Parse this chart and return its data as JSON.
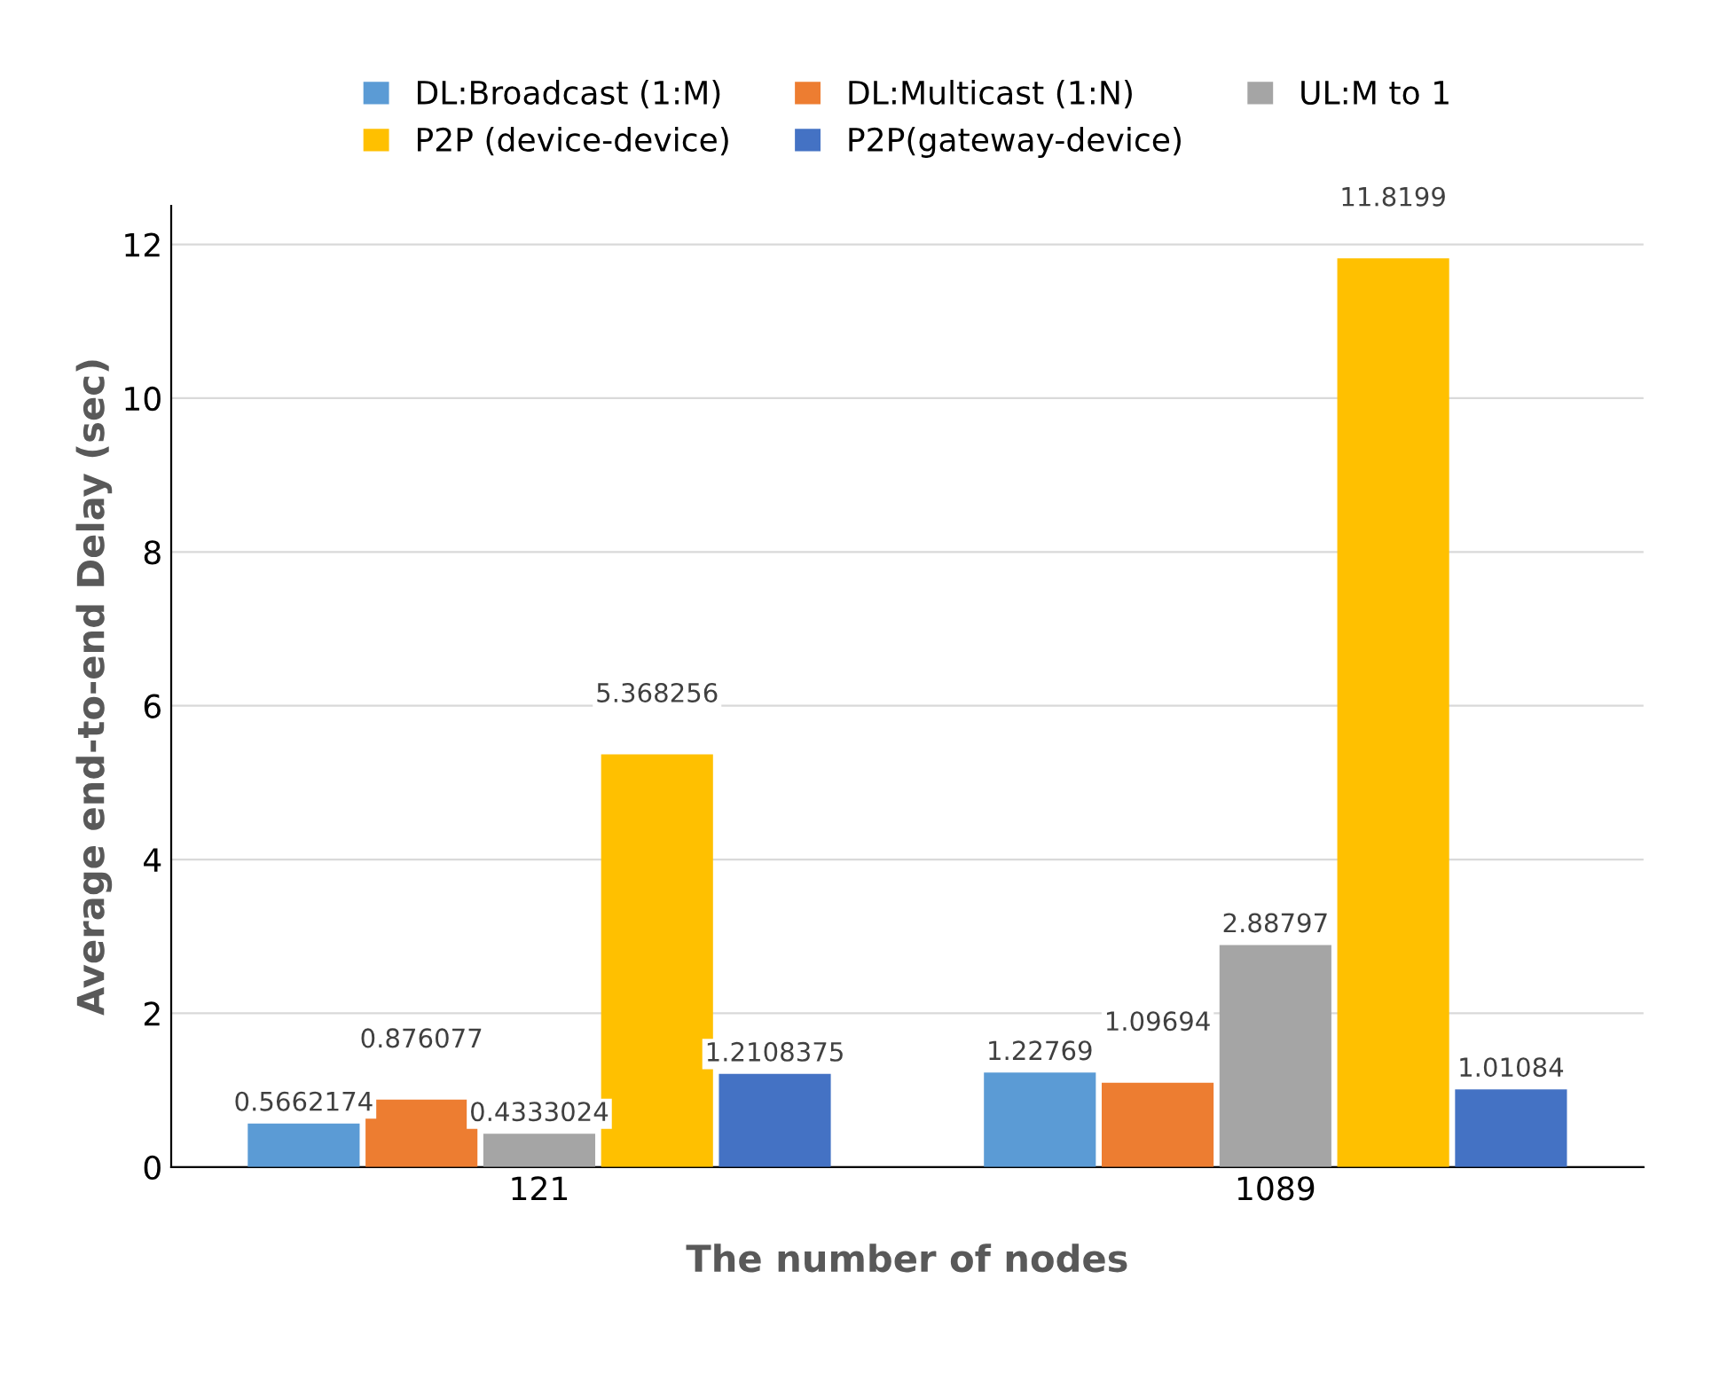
{
  "chart_data": {
    "type": "bar",
    "xlabel": "The number of nodes",
    "ylabel": "Average end-to-end Delay (sec)",
    "categories": [
      "121",
      "1089"
    ],
    "series": [
      {
        "name": "DL:Broadcast (1:M)",
        "color": "#5b9bd5",
        "values": [
          0.5662174,
          1.22769
        ]
      },
      {
        "name": "DL:Multicast (1:N)",
        "color": "#ed7d31",
        "values": [
          0.876077,
          1.09694
        ]
      },
      {
        "name": "UL:M to 1",
        "color": "#a5a5a5",
        "values": [
          0.4333024,
          2.88797
        ]
      },
      {
        "name": "P2P (device-device)",
        "color": "#ffc000",
        "values": [
          5.368256,
          11.8199
        ]
      },
      {
        "name": "P2P(gateway-device)",
        "color": "#4472c4",
        "values": [
          1.2108375,
          1.01084
        ]
      }
    ],
    "ylim": [
      0,
      12.5
    ],
    "yticks": [
      0,
      2,
      4,
      6,
      8,
      10,
      12
    ],
    "grid": "y",
    "legend": "top",
    "data_labels": true
  }
}
